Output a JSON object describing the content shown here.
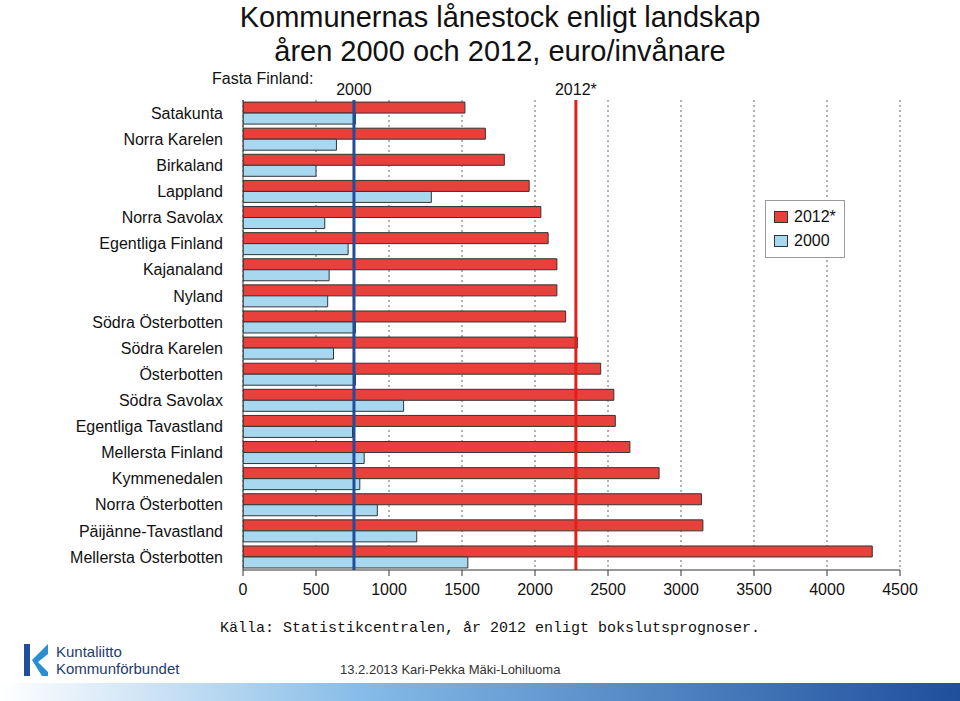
{
  "chart_data": {
    "type": "bar",
    "orientation": "horizontal",
    "title": "Kommunernas lånestock enligt landskap",
    "subtitle": "åren 2000 och 2012, euro/invånare",
    "categories": [
      "Satakunta",
      "Norra Karelen",
      "Birkaland",
      "Lappland",
      "Norra Savolax",
      "Egentliga Finland",
      "Kajanaland",
      "Nyland",
      "Södra Österbotten",
      "Södra Karelen",
      "Österbotten",
      "Södra Savolax",
      "Egentliga Tavastland",
      "Mellersta Finland",
      "Kymmenedalen",
      "Norra Österbotten",
      "Päijänne-Tavastland",
      "Mellersta Österbotten"
    ],
    "series": [
      {
        "name": "2012*",
        "color": "#e8403a",
        "values": [
          1520,
          1660,
          1790,
          1960,
          2040,
          2090,
          2150,
          2150,
          2210,
          2290,
          2450,
          2540,
          2550,
          2650,
          2850,
          3140,
          3150,
          4310
        ]
      },
      {
        "name": "2000",
        "color": "#a8d8f0",
        "values": [
          770,
          640,
          500,
          1290,
          560,
          720,
          590,
          580,
          770,
          620,
          770,
          1100,
          750,
          830,
          800,
          920,
          1190,
          1540
        ]
      }
    ],
    "xlim": [
      0,
      4500
    ],
    "xticks": [
      0,
      500,
      1000,
      1500,
      2000,
      2500,
      3000,
      3500,
      4000,
      4500
    ],
    "grid": true,
    "legend": "upper right",
    "reference_lines": {
      "label": "Fasta Finland:",
      "lines": [
        {
          "name": "2000",
          "value": 760,
          "color": "#1f4e9c"
        },
        {
          "name": "2012*",
          "value": 2280,
          "color": "#e0201b"
        }
      ]
    },
    "source": "Källa: Statistikcentralen, år 2012 enligt bokslutsprognoser.",
    "footer": "13.2.2013 Kari-Pekka Mäki-Lohiluoma",
    "logo": [
      "Kuntaliitto",
      "Kommunförbundet"
    ]
  }
}
